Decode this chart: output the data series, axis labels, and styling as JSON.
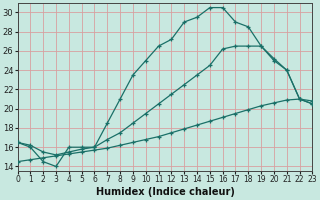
{
  "xlabel": "Humidex (Indice chaleur)",
  "bg_color": "#c8e8e0",
  "grid_color": "#d8a0a0",
  "line_color": "#1a7068",
  "xlim": [
    0,
    23
  ],
  "ylim": [
    13.5,
    31.0
  ],
  "yticks": [
    14,
    16,
    18,
    20,
    22,
    24,
    26,
    28,
    30
  ],
  "xticks": [
    0,
    1,
    2,
    3,
    4,
    5,
    6,
    7,
    8,
    9,
    10,
    11,
    12,
    13,
    14,
    15,
    16,
    17,
    18,
    19,
    20,
    21,
    22,
    23
  ],
  "line1_x": [
    0,
    1,
    2,
    3,
    4,
    5,
    6,
    7,
    8,
    9,
    10,
    11,
    12,
    13,
    14,
    15,
    16,
    17,
    18,
    19,
    20,
    21,
    22,
    23
  ],
  "line1_y": [
    16.5,
    16.0,
    14.5,
    14.0,
    16.0,
    16.0,
    16.0,
    18.5,
    21.0,
    23.5,
    25.0,
    26.5,
    27.2,
    29.0,
    29.5,
    30.5,
    30.5,
    29.0,
    28.5,
    26.5,
    25.0,
    24.0,
    21.0,
    20.5
  ],
  "line2_x": [
    0,
    1,
    2,
    3,
    4,
    5,
    6,
    7,
    8,
    9,
    10,
    11,
    12,
    13,
    14,
    15,
    16,
    17,
    18,
    19,
    20,
    21,
    22,
    23
  ],
  "line2_y": [
    16.5,
    16.2,
    15.5,
    15.2,
    15.5,
    15.8,
    16.0,
    16.8,
    17.5,
    18.5,
    19.5,
    20.5,
    21.5,
    22.5,
    23.5,
    24.5,
    26.2,
    26.5,
    26.5,
    26.5,
    25.2,
    24.0,
    21.0,
    20.5
  ],
  "line3_x": [
    0,
    1,
    2,
    3,
    4,
    5,
    6,
    7,
    8,
    9,
    10,
    11,
    12,
    13,
    14,
    15,
    16,
    17,
    18,
    19,
    20,
    21,
    22,
    23
  ],
  "line3_y": [
    14.5,
    14.7,
    14.9,
    15.1,
    15.3,
    15.5,
    15.7,
    15.9,
    16.2,
    16.5,
    16.8,
    17.1,
    17.5,
    17.9,
    18.3,
    18.7,
    19.1,
    19.5,
    19.9,
    20.3,
    20.6,
    20.9,
    21.0,
    20.8
  ]
}
